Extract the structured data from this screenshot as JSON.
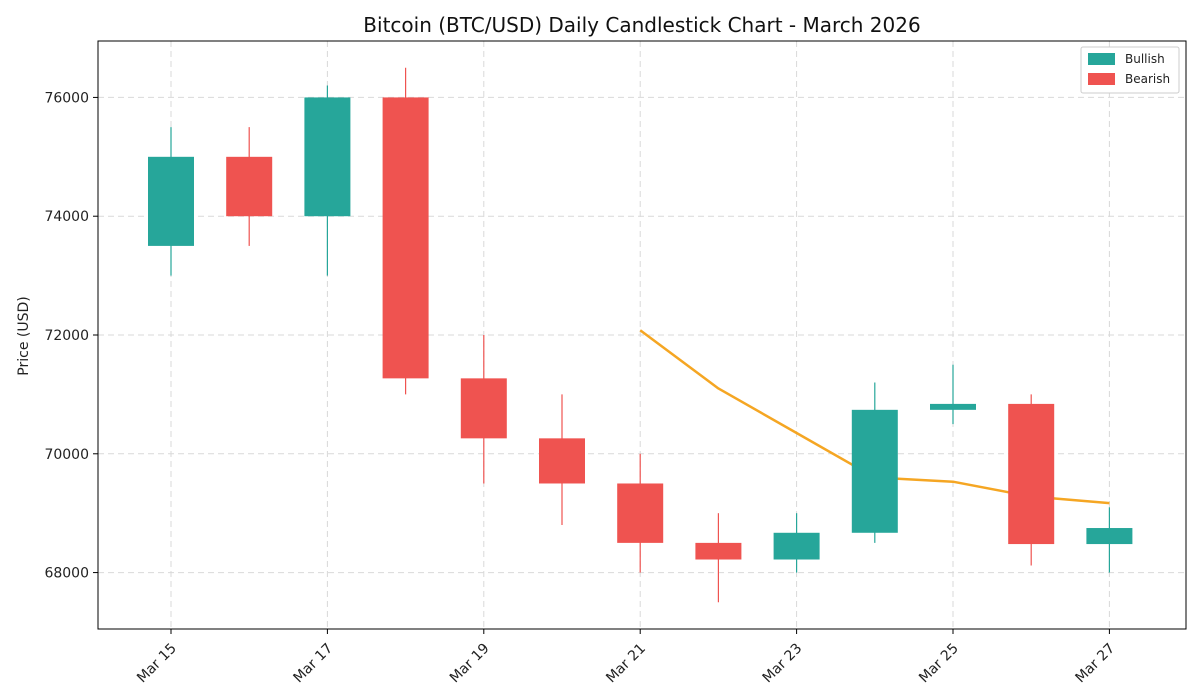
{
  "chart_data": {
    "type": "candlestick",
    "title": "Bitcoin (BTC/USD) Daily Candlestick Chart - March 2026",
    "xlabel": "",
    "ylabel": "Price (USD)",
    "ylim": [
      67050,
      76950
    ],
    "y_ticks": [
      68000,
      70000,
      72000,
      74000,
      76000
    ],
    "x_tick_labels": [
      "Mar 15",
      "Mar 17",
      "Mar 19",
      "Mar 21",
      "Mar 23",
      "Mar 25",
      "Mar 27"
    ],
    "grid": true,
    "legend_position": "top-right",
    "colors": {
      "bullish": "#26a69a",
      "bearish": "#ef5350",
      "ma": "#f5a623"
    },
    "legend": [
      {
        "label": "Bullish",
        "color": "#26a69a"
      },
      {
        "label": "Bearish",
        "color": "#ef5350"
      }
    ],
    "candles": [
      {
        "date": "Mar 15",
        "open": 73500,
        "high": 75500,
        "low": 73000,
        "close": 75000
      },
      {
        "date": "Mar 16",
        "open": 75000,
        "high": 75500,
        "low": 73500,
        "close": 74000
      },
      {
        "date": "Mar 17",
        "open": 74000,
        "high": 76200,
        "low": 73000,
        "close": 76000
      },
      {
        "date": "Mar 18",
        "open": 76000,
        "high": 76500,
        "low": 71000,
        "close": 71270
      },
      {
        "date": "Mar 19",
        "open": 71270,
        "high": 72000,
        "low": 69500,
        "close": 70260
      },
      {
        "date": "Mar 20",
        "open": 70260,
        "high": 71000,
        "low": 68800,
        "close": 69500
      },
      {
        "date": "Mar 21",
        "open": 69500,
        "high": 70000,
        "low": 68000,
        "close": 68500
      },
      {
        "date": "Mar 22",
        "open": 68500,
        "high": 69000,
        "low": 67500,
        "close": 68220
      },
      {
        "date": "Mar 23",
        "open": 68220,
        "high": 69000,
        "low": 68000,
        "close": 68670
      },
      {
        "date": "Mar 24",
        "open": 68670,
        "high": 71200,
        "low": 68500,
        "close": 70740
      },
      {
        "date": "Mar 25",
        "open": 70740,
        "high": 71500,
        "low": 70500,
        "close": 70840
      },
      {
        "date": "Mar 26",
        "open": 70840,
        "high": 71000,
        "low": 68120,
        "close": 68480
      },
      {
        "date": "Mar 27",
        "open": 68480,
        "high": 69100,
        "low": 68000,
        "close": 68750
      }
    ],
    "moving_average": [
      {
        "date": "Mar 21",
        "value": 72080
      },
      {
        "date": "Mar 22",
        "value": 71100
      },
      {
        "date": "Mar 23",
        "value": 70350
      },
      {
        "date": "Mar 24",
        "value": 69600
      },
      {
        "date": "Mar 25",
        "value": 69530
      },
      {
        "date": "Mar 26",
        "value": 69280
      },
      {
        "date": "Mar 27",
        "value": 69170
      }
    ]
  }
}
